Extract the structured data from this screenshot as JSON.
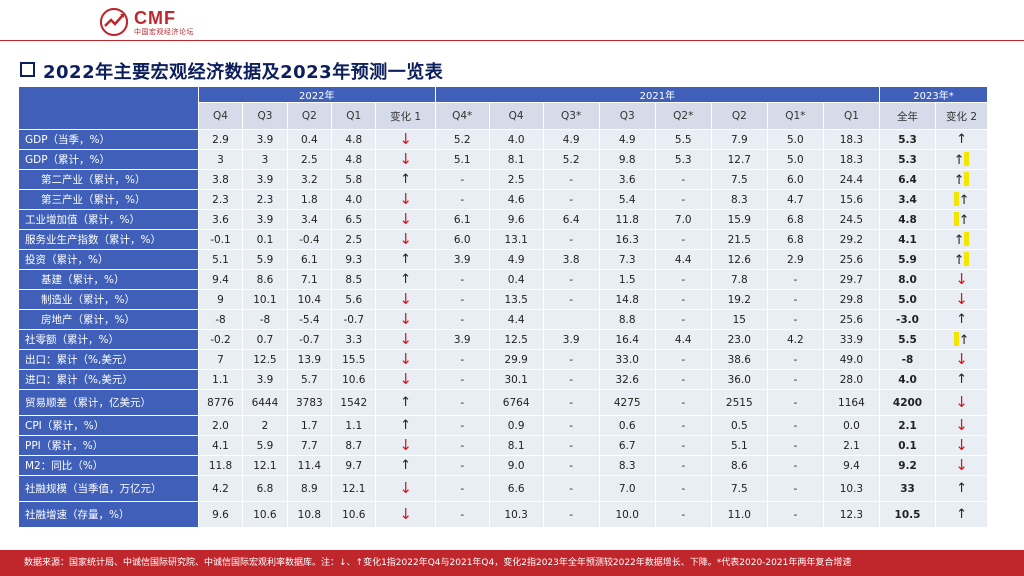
{
  "header": {
    "brand": "CMF",
    "subtitle": "中国宏观经济论坛"
  },
  "title": "2022年主要宏观经济数据及2023年预测一览表",
  "table": {
    "groups": {
      "g2022": "2022年",
      "g2021": "2021年",
      "g2023": "2023年*"
    },
    "columns": [
      "Q4",
      "Q3",
      "Q2",
      "Q1",
      "变化 1",
      "Q4*",
      "Q4",
      "Q3*",
      "Q3",
      "Q2*",
      "Q2",
      "Q1*",
      "Q1",
      "全年",
      "变化 2"
    ],
    "rows": [
      {
        "label": "GDP（当季，%）",
        "indent": false,
        "v": [
          "2.9",
          "3.9",
          "0.4",
          "4.8"
        ],
        "c1": "down",
        "w": [
          "5.2",
          "4.0",
          "4.9",
          "4.9",
          "5.5",
          "7.9",
          "5.0",
          "18.3"
        ],
        "y": "5.3",
        "c2": "up"
      },
      {
        "label": "GDP（累计，%）",
        "indent": false,
        "v": [
          "3",
          "3",
          "2.5",
          "4.8"
        ],
        "c1": "down",
        "w": [
          "5.1",
          "8.1",
          "5.2",
          "9.8",
          "5.3",
          "12.7",
          "5.0",
          "18.3"
        ],
        "y": "5.3",
        "c2": "up-bar"
      },
      {
        "label": "第二产业（累计，%）",
        "indent": true,
        "v": [
          "3.8",
          "3.9",
          "3.2",
          "5.8"
        ],
        "c1": "up",
        "w": [
          "-",
          "2.5",
          "-",
          "3.6",
          "-",
          "7.5",
          "6.0",
          "24.4"
        ],
        "y": "6.4",
        "c2": "up-bar"
      },
      {
        "label": "第三产业（累计，%）",
        "indent": true,
        "v": [
          "2.3",
          "2.3",
          "1.8",
          "4.0"
        ],
        "c1": "down",
        "w": [
          "-",
          "4.6",
          "-",
          "5.4",
          "-",
          "8.3",
          "4.7",
          "15.6"
        ],
        "y": "3.4",
        "c2": "bar-up"
      },
      {
        "label": "工业增加值（累计，%）",
        "indent": false,
        "v": [
          "3.6",
          "3.9",
          "3.4",
          "6.5"
        ],
        "c1": "down",
        "w": [
          "6.1",
          "9.6",
          "6.4",
          "11.8",
          "7.0",
          "15.9",
          "6.8",
          "24.5"
        ],
        "y": "4.8",
        "c2": "bar-up"
      },
      {
        "label": "服务业生产指数（累计，%）",
        "indent": false,
        "v": [
          "-0.1",
          "0.1",
          "-0.4",
          "2.5"
        ],
        "c1": "down",
        "w": [
          "6.0",
          "13.1",
          "-",
          "16.3",
          "-",
          "21.5",
          "6.8",
          "29.2"
        ],
        "y": "4.1",
        "c2": "up-bar"
      },
      {
        "label": "投资（累计，%）",
        "indent": false,
        "v": [
          "5.1",
          "5.9",
          "6.1",
          "9.3"
        ],
        "c1": "up",
        "w": [
          "3.9",
          "4.9",
          "3.8",
          "7.3",
          "4.4",
          "12.6",
          "2.9",
          "25.6"
        ],
        "y": "5.9",
        "c2": "up-bar"
      },
      {
        "label": "基建（累计，%）",
        "indent": true,
        "v": [
          "9.4",
          "8.6",
          "7.1",
          "8.5"
        ],
        "c1": "up",
        "w": [
          "-",
          "0.4",
          "-",
          "1.5",
          "-",
          "7.8",
          "-",
          "29.7"
        ],
        "y": "8.0",
        "c2": "down"
      },
      {
        "label": "制造业（累计，%）",
        "indent": true,
        "v": [
          "9",
          "10.1",
          "10.4",
          "5.6"
        ],
        "c1": "down",
        "w": [
          "-",
          "13.5",
          "-",
          "14.8",
          "-",
          "19.2",
          "-",
          "29.8"
        ],
        "y": "5.0",
        "c2": "down"
      },
      {
        "label": "房地产（累计，%）",
        "indent": true,
        "v": [
          "-8",
          "-8",
          "-5.4",
          "-0.7"
        ],
        "c1": "down",
        "w": [
          "-",
          "4.4",
          "",
          "8.8",
          "-",
          "15",
          "-",
          "25.6"
        ],
        "y": "-3.0",
        "c2": "up"
      },
      {
        "label": "社零额（累计，%）",
        "indent": false,
        "v": [
          "-0.2",
          "0.7",
          "-0.7",
          "3.3"
        ],
        "c1": "down",
        "w": [
          "3.9",
          "12.5",
          "3.9",
          "16.4",
          "4.4",
          "23.0",
          "4.2",
          "33.9"
        ],
        "y": "5.5",
        "c2": "bar-up"
      },
      {
        "label": "出口：累计（%,美元）",
        "indent": false,
        "v": [
          "7",
          "12.5",
          "13.9",
          "15.5"
        ],
        "c1": "down",
        "w": [
          "-",
          "29.9",
          "-",
          "33.0",
          "-",
          "38.6",
          "-",
          "49.0"
        ],
        "y": "-8",
        "c2": "down"
      },
      {
        "label": "进口：累计（%,美元）",
        "indent": false,
        "v": [
          "1.1",
          "3.9",
          "5.7",
          "10.6"
        ],
        "c1": "down",
        "w": [
          "-",
          "30.1",
          "-",
          "32.6",
          "-",
          "36.0",
          "-",
          "28.0"
        ],
        "y": "4.0",
        "c2": "up"
      },
      {
        "label": "贸易顺差（累计，亿美元）",
        "indent": false,
        "v": [
          "8776",
          "6444",
          "3783",
          "1542"
        ],
        "c1": "up",
        "w": [
          "-",
          "6764",
          "-",
          "4275",
          "-",
          "2515",
          "-",
          "1164"
        ],
        "y": "4200",
        "c2": "down",
        "tall": true
      },
      {
        "label": "CPI（累计，%）",
        "indent": false,
        "v": [
          "2.0",
          "2",
          "1.7",
          "1.1"
        ],
        "c1": "up",
        "w": [
          "-",
          "0.9",
          "-",
          "0.6",
          "-",
          "0.5",
          "-",
          "0.0"
        ],
        "y": "2.1",
        "c2": "down"
      },
      {
        "label": "PPI（累计，%）",
        "indent": false,
        "v": [
          "4.1",
          "5.9",
          "7.7",
          "8.7"
        ],
        "c1": "down",
        "w": [
          "-",
          "8.1",
          "-",
          "6.7",
          "-",
          "5.1",
          "-",
          "2.1"
        ],
        "y": "0.1",
        "c2": "down"
      },
      {
        "label": "M2：同比（%）",
        "indent": false,
        "v": [
          "11.8",
          "12.1",
          "11.4",
          "9.7"
        ],
        "c1": "up",
        "w": [
          "-",
          "9.0",
          "-",
          "8.3",
          "-",
          "8.6",
          "-",
          "9.4"
        ],
        "y": "9.2",
        "c2": "down"
      },
      {
        "label": "社融规模（当季值，万亿元）",
        "indent": false,
        "v": [
          "4.2",
          "6.8",
          "8.9",
          "12.1"
        ],
        "c1": "down",
        "w": [
          "-",
          "6.6",
          "-",
          "7.0",
          "-",
          "7.5",
          "-",
          "10.3"
        ],
        "y": "33",
        "c2": "up",
        "tall": true
      },
      {
        "label": "社融增速（存量，%）",
        "indent": false,
        "v": [
          "9.6",
          "10.6",
          "10.8",
          "10.6"
        ],
        "c1": "down",
        "w": [
          "-",
          "10.3",
          "-",
          "10.0",
          "-",
          "11.0",
          "-",
          "12.3"
        ],
        "y": "10.5",
        "c2": "up",
        "tall": true
      }
    ]
  },
  "footer": "数据来源：国家统计局、中诚信国际研究院、中诚信国际宏观利率数据库。注：↓、↑变化1指2022年Q4与2021年Q4，变化2指2023年全年预测较2022年数据增长、下降。*代表2020-2021年两年复合增速",
  "colors": {
    "brand_red": "#c0272d",
    "header_blue": "#3f5fb8",
    "cell_bg": "#e9edf4",
    "down_arrow": "#d6141c",
    "bar_yellow": "#f5e600"
  }
}
